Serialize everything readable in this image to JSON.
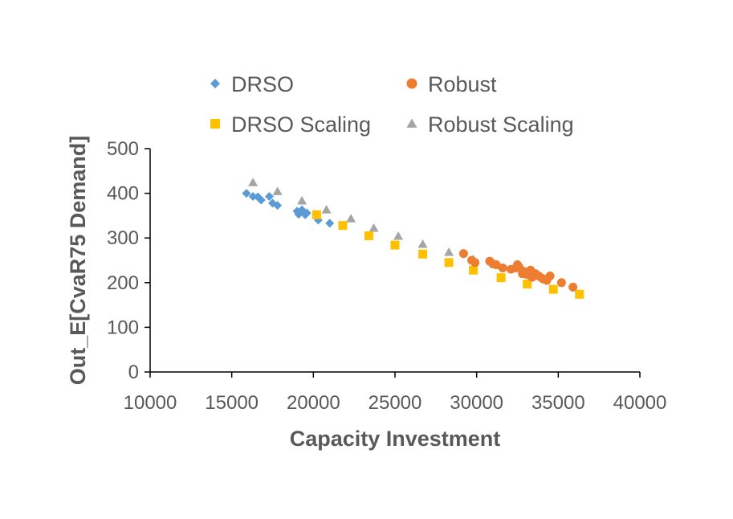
{
  "chart_data": {
    "type": "scatter",
    "title": "",
    "xlabel": "Capacity Investment",
    "ylabel": "Out_E[CvaR75 Demand]",
    "xlim": [
      10000,
      40000
    ],
    "ylim": [
      0,
      500
    ],
    "xticks": [
      10000,
      15000,
      20000,
      25000,
      30000,
      35000,
      40000
    ],
    "yticks": [
      0,
      100,
      200,
      300,
      400,
      500
    ],
    "grid": false,
    "legend": "top",
    "series": [
      {
        "name": "DRSO",
        "marker": "diamond",
        "color": "#5B9BD5",
        "x": [
          15900,
          16300,
          16600,
          16800,
          17300,
          17500,
          17800,
          19000,
          19100,
          19300,
          19500,
          19600,
          20300,
          21000
        ],
        "y": [
          400,
          393,
          392,
          385,
          393,
          378,
          373,
          360,
          353,
          363,
          352,
          356,
          340,
          333
        ]
      },
      {
        "name": "Robust",
        "marker": "circle",
        "color": "#ED7D31",
        "x": [
          29200,
          29700,
          29900,
          30800,
          31000,
          31200,
          31600,
          32100,
          32400,
          32500,
          32600,
          32800,
          32900,
          33100,
          33300,
          33400,
          33600,
          33800,
          34000,
          34100,
          34300,
          34500,
          35200,
          35900
        ],
        "y": [
          265,
          250,
          245,
          248,
          242,
          240,
          233,
          230,
          233,
          240,
          235,
          220,
          225,
          218,
          228,
          212,
          220,
          215,
          210,
          208,
          205,
          215,
          200,
          190
        ]
      },
      {
        "name": "DRSO Scaling",
        "marker": "square",
        "color": "#FFC000",
        "x": [
          20200,
          21800,
          23400,
          25000,
          26700,
          28300,
          29800,
          31500,
          33100,
          34700,
          36300
        ],
        "y": [
          352,
          328,
          305,
          284,
          264,
          245,
          228,
          211,
          197,
          185,
          174
        ]
      },
      {
        "name": "Robust Scaling",
        "marker": "triangle",
        "color": "#A5A5A5",
        "x": [
          16300,
          17800,
          19300,
          20800,
          22300,
          23700,
          25200,
          26700,
          28300,
          29800
        ],
        "y": [
          424,
          404,
          383,
          363,
          343,
          322,
          304,
          286,
          268,
          252
        ]
      }
    ]
  }
}
